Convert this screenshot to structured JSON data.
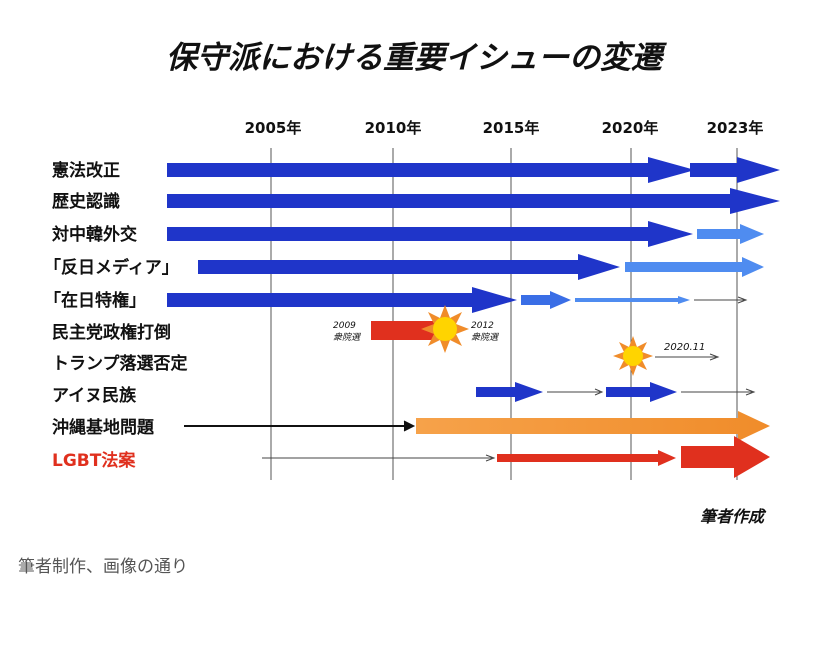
{
  "title": "保守派における重要イシューの変遷",
  "years": [
    "2005年",
    "2010年",
    "2015年",
    "2020年",
    "2023年"
  ],
  "issues": [
    {
      "label": "憲法改正",
      "color": "#000000"
    },
    {
      "label": "歴史認識",
      "color": "#000000"
    },
    {
      "label": "対中韓外交",
      "color": "#000000"
    },
    {
      "label": "「反日メディア」",
      "color": "#000000"
    },
    {
      "label": "「在日特権」",
      "color": "#000000"
    },
    {
      "label": "民主党政権打倒",
      "color": "#000000"
    },
    {
      "label": "トランプ落選否定",
      "color": "#000000"
    },
    {
      "label": "アイヌ民族",
      "color": "#000000"
    },
    {
      "label": "沖縄基地問題",
      "color": "#000000"
    },
    {
      "label": "LGBT法案",
      "color": "#e0301e"
    }
  ],
  "annotations": {
    "election_2009_year": "2009",
    "election_2009_label": "衆院選",
    "election_2012_year": "2012",
    "election_2012_label": "衆院選",
    "trump_date": "2020.11"
  },
  "credit": "筆者作成",
  "caption": "筆者制作、画像の通り",
  "colors": {
    "dark_blue": "#1f35c9",
    "mid_blue": "#3a6ee6",
    "light_blue": "#4f8cf0",
    "red": "#e0301e",
    "orange": "#f08c2a",
    "sun": "#ffd400",
    "grid": "#555555"
  }
}
